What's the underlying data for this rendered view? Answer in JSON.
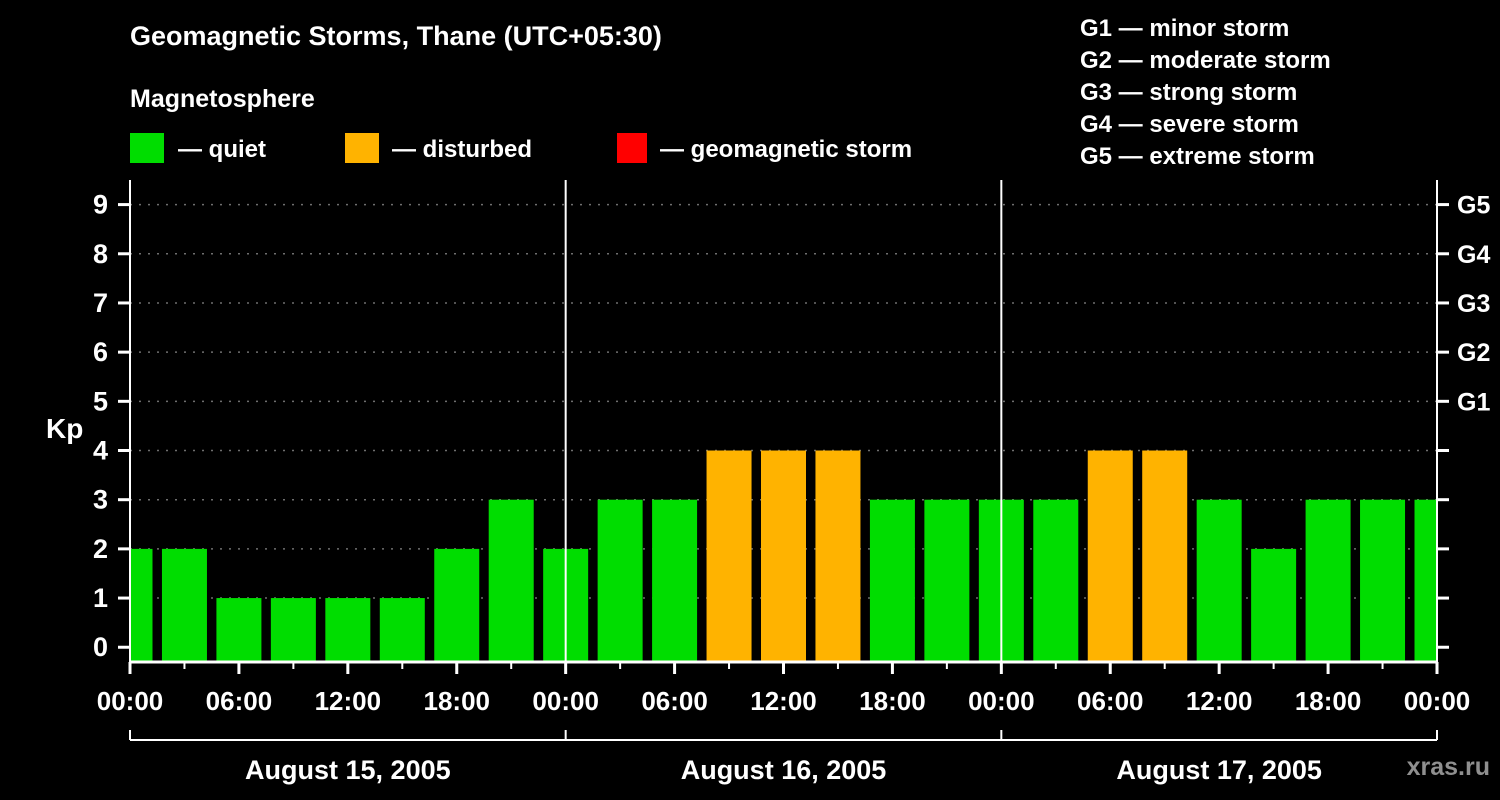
{
  "header": {
    "title": "Geomagnetic Storms, Thane (UTC+05:30)",
    "subtitle": "Magnetosphere"
  },
  "kp_legend": {
    "quiet": {
      "label": "— quiet",
      "color": "#00dd00"
    },
    "disturbed": {
      "label": "— disturbed",
      "color": "#ffb300"
    },
    "storm": {
      "label": "— geomagnetic storm",
      "color": "#ff0000"
    }
  },
  "g_legend": {
    "lines": [
      "G1 — minor storm",
      "G2 — moderate storm",
      "G3 — strong storm",
      "G4 — severe storm",
      "G5 — extreme storm"
    ]
  },
  "watermark": "xras.ru",
  "chart_data": {
    "type": "bar",
    "title": "Geomagnetic Storms, Thane (UTC+05:30)",
    "ylabel": "Kp",
    "xlabel": "",
    "ylim": [
      0,
      9
    ],
    "y_ticks": [
      0,
      1,
      2,
      3,
      4,
      5,
      6,
      7,
      8,
      9
    ],
    "grid": "dotted-horizontal",
    "legend_position": "top-left",
    "interval_hours": 3,
    "x_tick_labels": [
      "00:00",
      "06:00",
      "12:00",
      "18:00",
      "00:00",
      "06:00",
      "12:00",
      "18:00",
      "00:00",
      "06:00",
      "12:00",
      "18:00",
      "00:00"
    ],
    "days": [
      {
        "date": "August 15, 2005",
        "values": [
          2,
          2,
          1,
          1,
          1,
          1,
          2,
          3
        ]
      },
      {
        "date": "August 16, 2005",
        "values": [
          2,
          3,
          3,
          4,
          4,
          4,
          3,
          3
        ]
      },
      {
        "date": "August 17, 2005",
        "values": [
          3,
          3,
          4,
          4,
          3,
          2,
          3,
          3
        ]
      }
    ],
    "trailing_point": {
      "time": "00:00",
      "value": 3
    },
    "right_scale": [
      {
        "kp": 5,
        "label": "G1"
      },
      {
        "kp": 6,
        "label": "G2"
      },
      {
        "kp": 7,
        "label": "G3"
      },
      {
        "kp": 8,
        "label": "G4"
      },
      {
        "kp": 9,
        "label": "G5"
      }
    ],
    "colors": {
      "quiet": "#00dd00",
      "disturbed": "#ffb300",
      "storm": "#ff0000"
    },
    "thresholds": {
      "disturbed_min_kp": 4,
      "storm_min_kp": 5
    }
  }
}
